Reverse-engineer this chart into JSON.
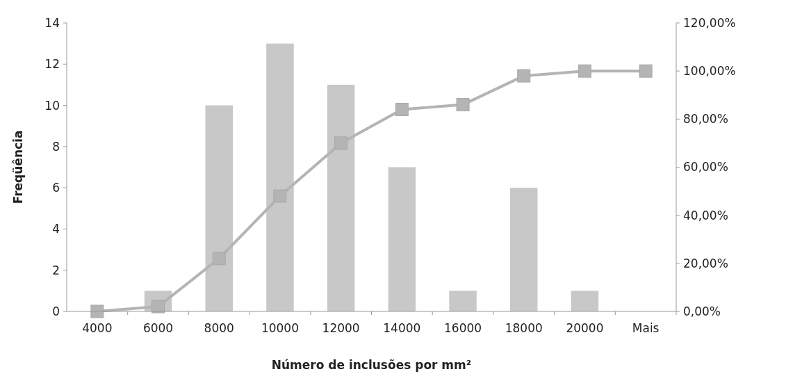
{
  "chart_data": {
    "type": "bar",
    "xlabel": "Número de inclusões por mm²",
    "ylabel": "Freqüência",
    "categories": [
      "4000",
      "6000",
      "8000",
      "10000",
      "12000",
      "14000",
      "16000",
      "18000",
      "20000",
      "Mais"
    ],
    "series": [
      {
        "color": "#c8c8c8",
        "values": [
          0,
          1,
          10,
          13,
          11,
          7,
          1,
          6,
          1,
          0
        ]
      },
      {
        "type": "line",
        "axis": "y2",
        "color": "#b4b4b4",
        "marker": "square",
        "values": [
          0,
          2,
          22,
          48,
          70,
          84,
          86,
          98,
          100,
          100
        ]
      }
    ],
    "ylim": [
      0,
      14
    ],
    "yticks": [
      0,
      2,
      4,
      6,
      8,
      10,
      12,
      14
    ],
    "y2lim": [
      0,
      120
    ],
    "y2ticks": [
      {
        "value": 0,
        "label": "0,00%"
      },
      {
        "value": 20,
        "label": "20,00%"
      },
      {
        "value": 40,
        "label": "40,00%"
      },
      {
        "value": 60,
        "label": "60,00%"
      },
      {
        "value": 80,
        "label": "80,00%"
      },
      {
        "value": 100,
        "label": "100,00%"
      },
      {
        "value": 120,
        "label": "120,00%"
      }
    ],
    "grid": false
  }
}
